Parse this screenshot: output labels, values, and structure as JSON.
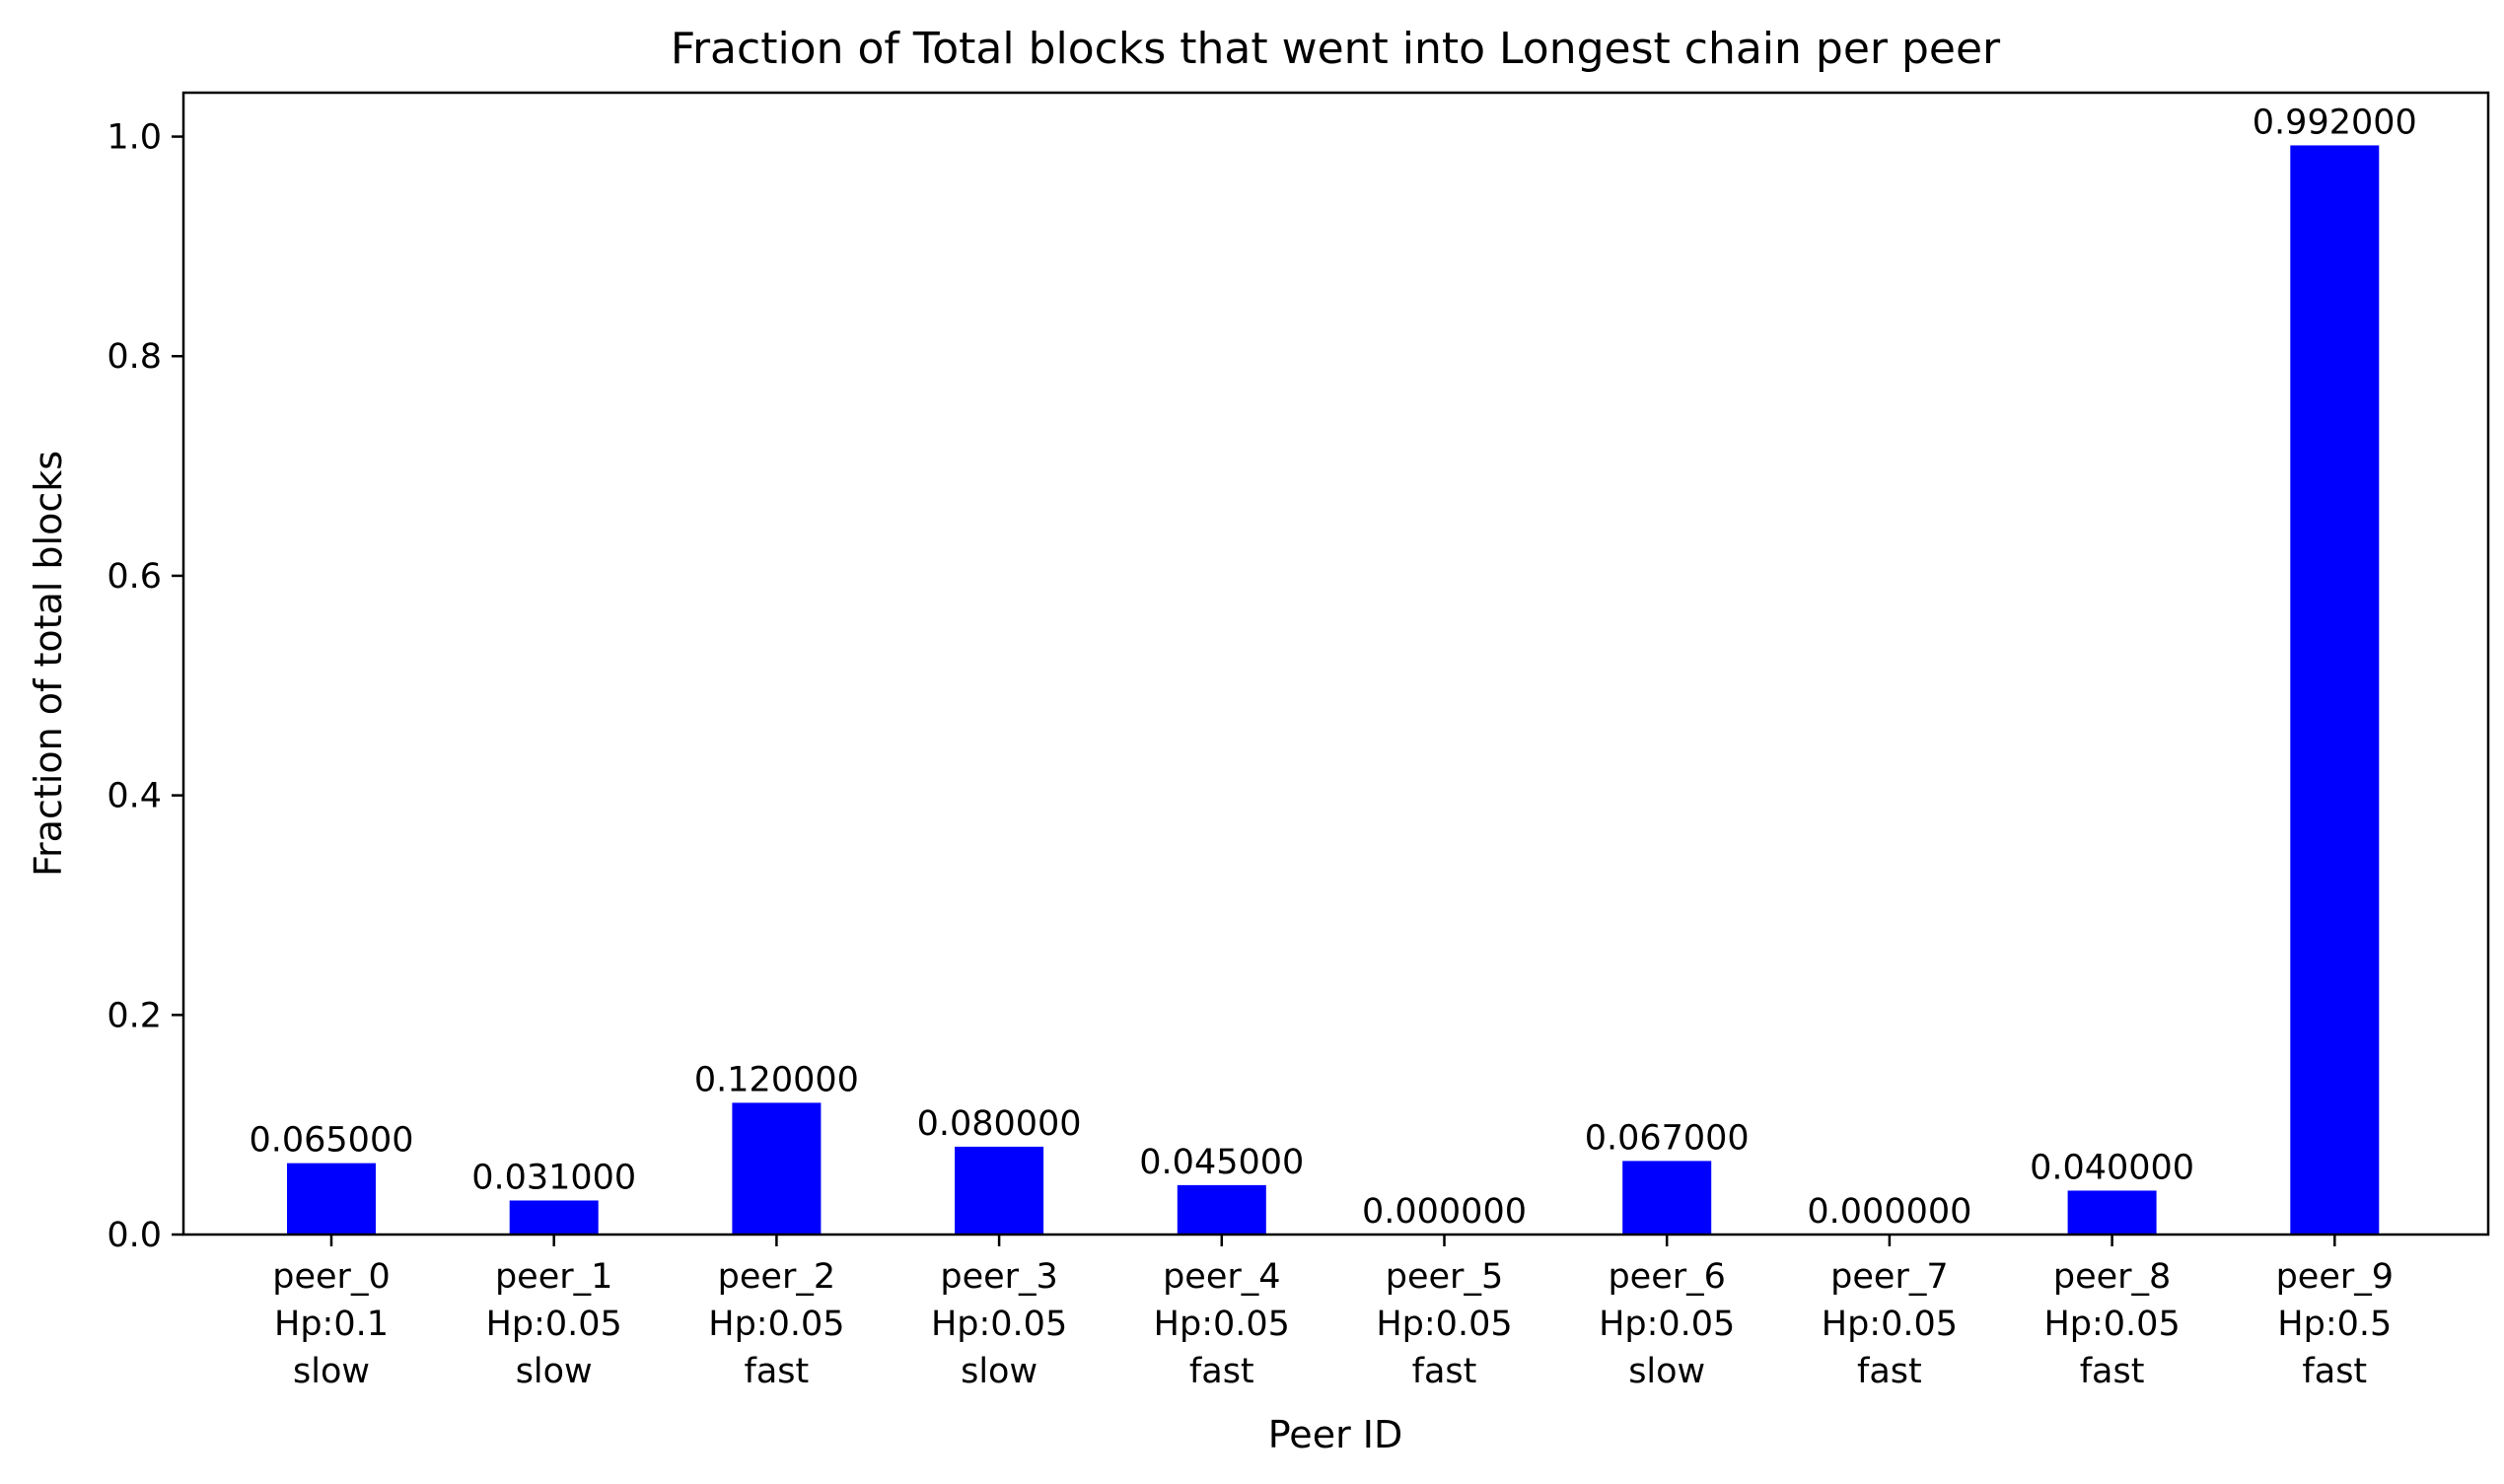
{
  "chart_data": {
    "type": "bar",
    "title": "Fraction of Total blocks that went into Longest chain per peer",
    "xlabel": "Peer ID",
    "ylabel": "Fraction of total blocks",
    "ylim": [
      0,
      1.04
    ],
    "yticks": [
      0.0,
      0.2,
      0.4,
      0.6,
      0.8,
      1.0
    ],
    "ytick_labels": [
      "0.0",
      "0.2",
      "0.4",
      "0.6",
      "0.8",
      "1.0"
    ],
    "bar_color": "#0000ff",
    "grid": false,
    "categories": [
      [
        "peer_0",
        "Hp:0.1",
        "slow"
      ],
      [
        "peer_1",
        "Hp:0.05",
        "slow"
      ],
      [
        "peer_2",
        "Hp:0.05",
        "fast"
      ],
      [
        "peer_3",
        "Hp:0.05",
        "slow"
      ],
      [
        "peer_4",
        "Hp:0.05",
        "fast"
      ],
      [
        "peer_5",
        "Hp:0.05",
        "fast"
      ],
      [
        "peer_6",
        "Hp:0.05",
        "slow"
      ],
      [
        "peer_7",
        "Hp:0.05",
        "fast"
      ],
      [
        "peer_8",
        "Hp:0.05",
        "fast"
      ],
      [
        "peer_9",
        "Hp:0.5",
        "fast"
      ]
    ],
    "values": [
      0.065,
      0.031,
      0.12,
      0.08,
      0.045,
      0.0,
      0.067,
      0.0,
      0.04,
      0.992
    ],
    "value_labels": [
      "0.065000",
      "0.031000",
      "0.120000",
      "0.080000",
      "0.045000",
      "0.000000",
      "0.067000",
      "0.000000",
      "0.040000",
      "0.992000"
    ]
  }
}
